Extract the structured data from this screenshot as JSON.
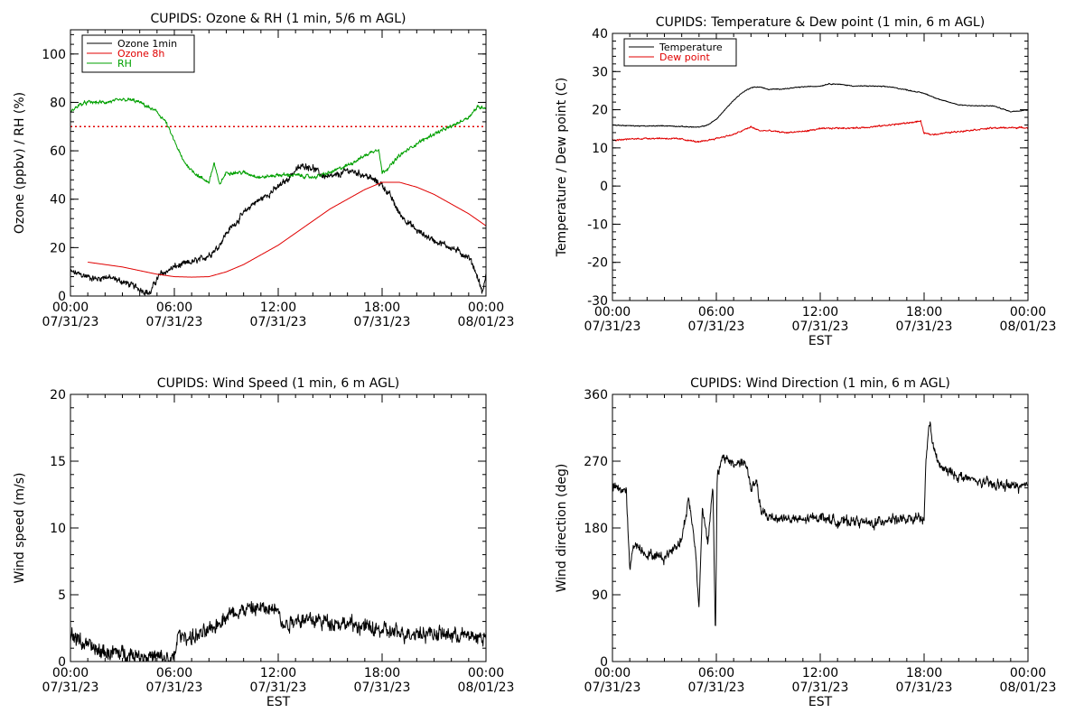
{
  "chart_data": [
    {
      "type": "line",
      "title": "CUPIDS: Ozone & RH (1 min, 5/6 m AGL)",
      "ylabel": "Ozone (ppbv) / RH (%)",
      "xlabel": "",
      "ylim": [
        0,
        110
      ],
      "yticks": [
        0,
        20,
        40,
        60,
        80,
        100
      ],
      "xlim": [
        0,
        24
      ],
      "xticks": [
        {
          "x": 0,
          "l1": "00:00",
          "l2": "07/31/23"
        },
        {
          "x": 6,
          "l1": "06:00",
          "l2": "07/31/23"
        },
        {
          "x": 12,
          "l1": "12:00",
          "l2": "07/31/23"
        },
        {
          "x": 18,
          "l1": "18:00",
          "l2": "07/31/23"
        },
        {
          "x": 24,
          "l1": "00:00",
          "l2": "08/01/23"
        }
      ],
      "legend": "top-left",
      "reference_line": {
        "y": 70,
        "color": "#e00000",
        "style": "dotted"
      },
      "series": [
        {
          "name": "Ozone 1min",
          "color": "#000000",
          "noise": 1.6,
          "x": [
            0,
            0.5,
            1,
            1.5,
            2,
            3,
            4,
            4.3,
            4.6,
            4.9,
            5.2,
            5.5,
            6,
            6.5,
            7,
            7.5,
            8,
            8.5,
            9,
            10,
            10.5,
            11,
            12,
            12.5,
            13,
            13.5,
            14,
            14.5,
            15,
            15.5,
            16,
            17,
            17.5,
            18,
            18.5,
            19,
            20,
            21,
            22,
            23,
            23.3,
            23.6,
            23.8,
            24
          ],
          "y": [
            10,
            9,
            8,
            7,
            8,
            6,
            3,
            2,
            1,
            6,
            9,
            10,
            12,
            13,
            14,
            15,
            17,
            20,
            26,
            34,
            38,
            40,
            45,
            48,
            52,
            54,
            53,
            50,
            49,
            50,
            52,
            50,
            48,
            46,
            41,
            34,
            27,
            23,
            20,
            16,
            12,
            6,
            1,
            9
          ]
        },
        {
          "name": "Ozone 8h",
          "color": "#e00000",
          "noise": 0,
          "x": [
            1,
            2,
            3,
            4,
            5,
            6,
            7,
            8,
            9,
            10,
            11,
            12,
            13,
            14,
            15,
            16,
            17,
            18,
            19,
            20,
            21,
            22,
            23,
            24
          ],
          "y": [
            14,
            13,
            12,
            10.5,
            9,
            8,
            7.8,
            8,
            10,
            13,
            17,
            21,
            26,
            31,
            36,
            40,
            44,
            47,
            47,
            45,
            42,
            38,
            34,
            29
          ]
        },
        {
          "name": "RH",
          "color": "#00a000",
          "noise": 0.9,
          "x": [
            0,
            0.5,
            1,
            2,
            3,
            3.5,
            4,
            5,
            5.5,
            6,
            6.5,
            7,
            7.5,
            8,
            8.3,
            8.6,
            9,
            10,
            11,
            12,
            13,
            14,
            15,
            16,
            17,
            17.8,
            18,
            18.5,
            19,
            20,
            21,
            22,
            23,
            23.5,
            24
          ],
          "y": [
            76,
            79,
            80,
            80,
            81,
            81,
            80,
            76,
            72,
            64,
            56,
            52,
            49,
            47,
            55,
            46,
            51,
            51,
            49,
            50,
            50,
            49,
            51,
            54,
            58,
            61,
            51,
            54,
            58,
            63,
            67,
            70,
            74,
            78,
            78
          ]
        }
      ]
    },
    {
      "type": "line",
      "title": "CUPIDS: Temperature & Dew point (1 min, 6 m AGL)",
      "ylabel": "Temperature / Dew point (C)",
      "xlabel": "EST",
      "ylim": [
        -30,
        40
      ],
      "yticks": [
        -30,
        -20,
        -10,
        0,
        10,
        20,
        30,
        40
      ],
      "xlim": [
        0,
        24
      ],
      "xticks": [
        {
          "x": 0,
          "l1": "00:00",
          "l2": "07/31/23"
        },
        {
          "x": 6,
          "l1": "06:00",
          "l2": "07/31/23"
        },
        {
          "x": 12,
          "l1": "12:00",
          "l2": "07/31/23"
        },
        {
          "x": 18,
          "l1": "18:00",
          "l2": "07/31/23"
        },
        {
          "x": 24,
          "l1": "00:00",
          "l2": "08/01/23"
        }
      ],
      "legend": "top-left",
      "series": [
        {
          "name": "Temperature",
          "color": "#000000",
          "noise": 0.15,
          "x": [
            0,
            1,
            2,
            3,
            4,
            5,
            5.5,
            6,
            6.5,
            7,
            7.5,
            8,
            8.5,
            9,
            10,
            11,
            12,
            12.5,
            13,
            14,
            15,
            16,
            17,
            18,
            19,
            20,
            21,
            22,
            23,
            24
          ],
          "y": [
            16,
            15.8,
            15.7,
            15.8,
            15.6,
            15.4,
            16,
            17.5,
            20,
            22.5,
            24.5,
            25.8,
            26,
            25.3,
            25.5,
            26,
            26.2,
            26.8,
            26.7,
            26.2,
            26.2,
            26,
            25.2,
            24.3,
            22.5,
            21.3,
            21,
            21,
            19.5,
            20
          ]
        },
        {
          "name": "Dew point",
          "color": "#e00000",
          "noise": 0.25,
          "x": [
            0,
            1,
            2,
            3,
            4,
            5,
            6,
            7,
            8,
            8.5,
            9,
            10,
            11,
            12,
            13,
            14,
            15,
            16,
            17,
            17.8,
            18,
            18.5,
            19,
            20,
            21,
            22,
            23,
            24
          ],
          "y": [
            12,
            12.3,
            12.5,
            12.5,
            12.3,
            11.5,
            12.5,
            13.5,
            15.5,
            14.5,
            14.5,
            14,
            14.3,
            15,
            15.2,
            15.2,
            15.5,
            16,
            16.5,
            17,
            13.8,
            13.5,
            13.8,
            14.3,
            14.8,
            15.2,
            15.3,
            15.3
          ]
        }
      ]
    },
    {
      "type": "line",
      "title": "CUPIDS: Wind Speed (1 min, 6 m AGL)",
      "ylabel": "Wind speed (m/s)",
      "xlabel": "EST",
      "ylim": [
        0,
        20
      ],
      "yticks": [
        0,
        5,
        10,
        15,
        20
      ],
      "xlim": [
        0,
        24
      ],
      "xticks": [
        {
          "x": 0,
          "l1": "00:00",
          "l2": "07/31/23"
        },
        {
          "x": 6,
          "l1": "06:00",
          "l2": "07/31/23"
        },
        {
          "x": 12,
          "l1": "12:00",
          "l2": "07/31/23"
        },
        {
          "x": 18,
          "l1": "18:00",
          "l2": "07/31/23"
        },
        {
          "x": 24,
          "l1": "00:00",
          "l2": "08/01/23"
        }
      ],
      "series": [
        {
          "name": "",
          "color": "#000000",
          "noise": 0.7,
          "x": [
            0,
            0.5,
            1,
            1.5,
            2,
            3,
            4,
            5,
            5.5,
            5.9,
            6,
            6.2,
            7,
            8,
            9,
            10,
            11,
            11.5,
            12,
            12.2,
            13,
            14,
            15,
            16,
            17,
            18,
            19,
            20,
            21,
            22,
            23,
            24
          ],
          "y": [
            2,
            1.6,
            1.2,
            0.8,
            0.7,
            0.6,
            0.5,
            0.3,
            0.2,
            0.1,
            0.3,
            2,
            1.8,
            2.2,
            3.5,
            3.9,
            4,
            3.8,
            4.4,
            2.6,
            3.2,
            3.1,
            3,
            2.8,
            2.6,
            2.3,
            2.1,
            2.2,
            2.1,
            2,
            1.9,
            1.8
          ]
        }
      ]
    },
    {
      "type": "line",
      "title": "CUPIDS: Wind Direction (1 min, 6 m AGL)",
      "ylabel": "Wind direction (deg)",
      "xlabel": "EST",
      "ylim": [
        0,
        360
      ],
      "yticks": [
        0,
        90,
        180,
        270,
        360
      ],
      "xlim": [
        0,
        24
      ],
      "xticks": [
        {
          "x": 0,
          "l1": "00:00",
          "l2": "07/31/23"
        },
        {
          "x": 6,
          "l1": "06:00",
          "l2": "07/31/23"
        },
        {
          "x": 12,
          "l1": "12:00",
          "l2": "07/31/23"
        },
        {
          "x": 18,
          "l1": "18:00",
          "l2": "07/31/23"
        },
        {
          "x": 24,
          "l1": "00:00",
          "l2": "08/01/23"
        }
      ],
      "series": [
        {
          "name": "",
          "color": "#000000",
          "noise": 8,
          "x": [
            0,
            0.8,
            1,
            1.2,
            2,
            3,
            4,
            4.4,
            4.8,
            5,
            5.2,
            5.5,
            5.8,
            5.95,
            6.05,
            6.3,
            6.6,
            7,
            7.5,
            7.8,
            8,
            8.3,
            8.6,
            9,
            10,
            11,
            12,
            13,
            14,
            15,
            16,
            17,
            17.8,
            18,
            18.1,
            18.3,
            18.6,
            19,
            20,
            21,
            22,
            23,
            24
          ],
          "y": [
            235,
            230,
            120,
            160,
            145,
            140,
            165,
            220,
            150,
            70,
            210,
            160,
            240,
            30,
            250,
            270,
            275,
            265,
            270,
            260,
            230,
            245,
            200,
            195,
            193,
            190,
            196,
            188,
            190,
            185,
            193,
            190,
            193,
            190,
            265,
            325,
            280,
            260,
            250,
            243,
            238,
            237,
            235
          ]
        }
      ]
    }
  ]
}
